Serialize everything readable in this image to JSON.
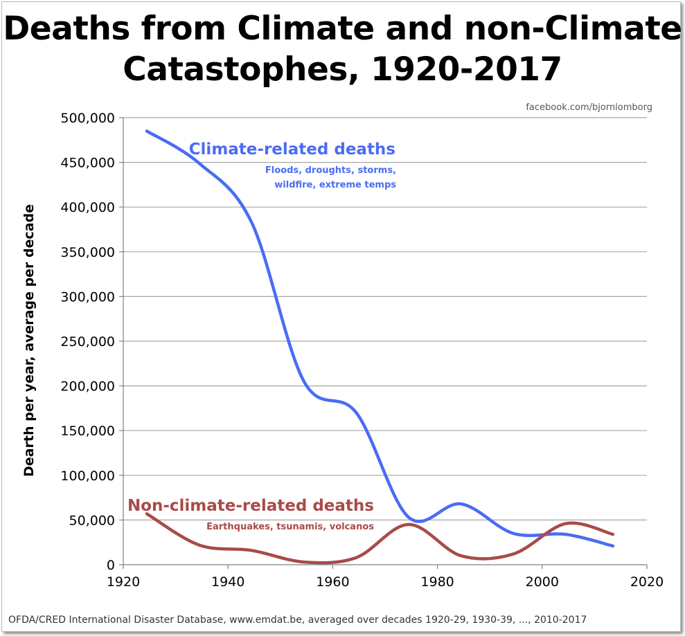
{
  "chart_data": {
    "type": "line",
    "title_line1": "Deaths from Climate and non-Climate",
    "title_line2": "Catastophes, 1920-2017",
    "watermark": "facebook.com/bjornlomborg",
    "ylabel": "Dearth per year, average per decade",
    "footer": "OFDA/CRED International Disaster Database, www.emdat.be, averaged over decades 1920-29, 1930-39, ..., 2010-2017",
    "xlim": [
      1920,
      2020
    ],
    "ylim": [
      0,
      500000
    ],
    "x_ticks": [
      "1920",
      "1940",
      "1960",
      "1980",
      "2000",
      "2020"
    ],
    "y_ticks": [
      "0",
      "50,000",
      "100,000",
      "150,000",
      "200,000",
      "250,000",
      "300,000",
      "350,000",
      "400,000",
      "450,000",
      "500,000"
    ],
    "grid": true,
    "series": [
      {
        "name": "Climate-related deaths",
        "note_line1": "Floods, droughts, storms,",
        "note_line2": "wildfire, extreme temps",
        "color": "#4a6cf4",
        "x": [
          1924.5,
          1934.5,
          1944.5,
          1954.5,
          1964.5,
          1974.5,
          1984.5,
          1994.5,
          2004.5,
          2013.5
        ],
        "values": [
          485000,
          449000,
          383000,
          205000,
          170000,
          53000,
          68000,
          35000,
          34000,
          21000
        ]
      },
      {
        "name": "Non-climate-related deaths",
        "note_line1": "Earthquakes, tsunamis, volcanos",
        "color": "#a84b49",
        "x": [
          1924.5,
          1934.5,
          1944.5,
          1954.5,
          1964.5,
          1974.5,
          1984.5,
          1994.5,
          2004.5,
          2013.5
        ],
        "values": [
          57000,
          22000,
          16000,
          3000,
          8000,
          45000,
          10000,
          12000,
          46000,
          34000
        ]
      }
    ]
  }
}
